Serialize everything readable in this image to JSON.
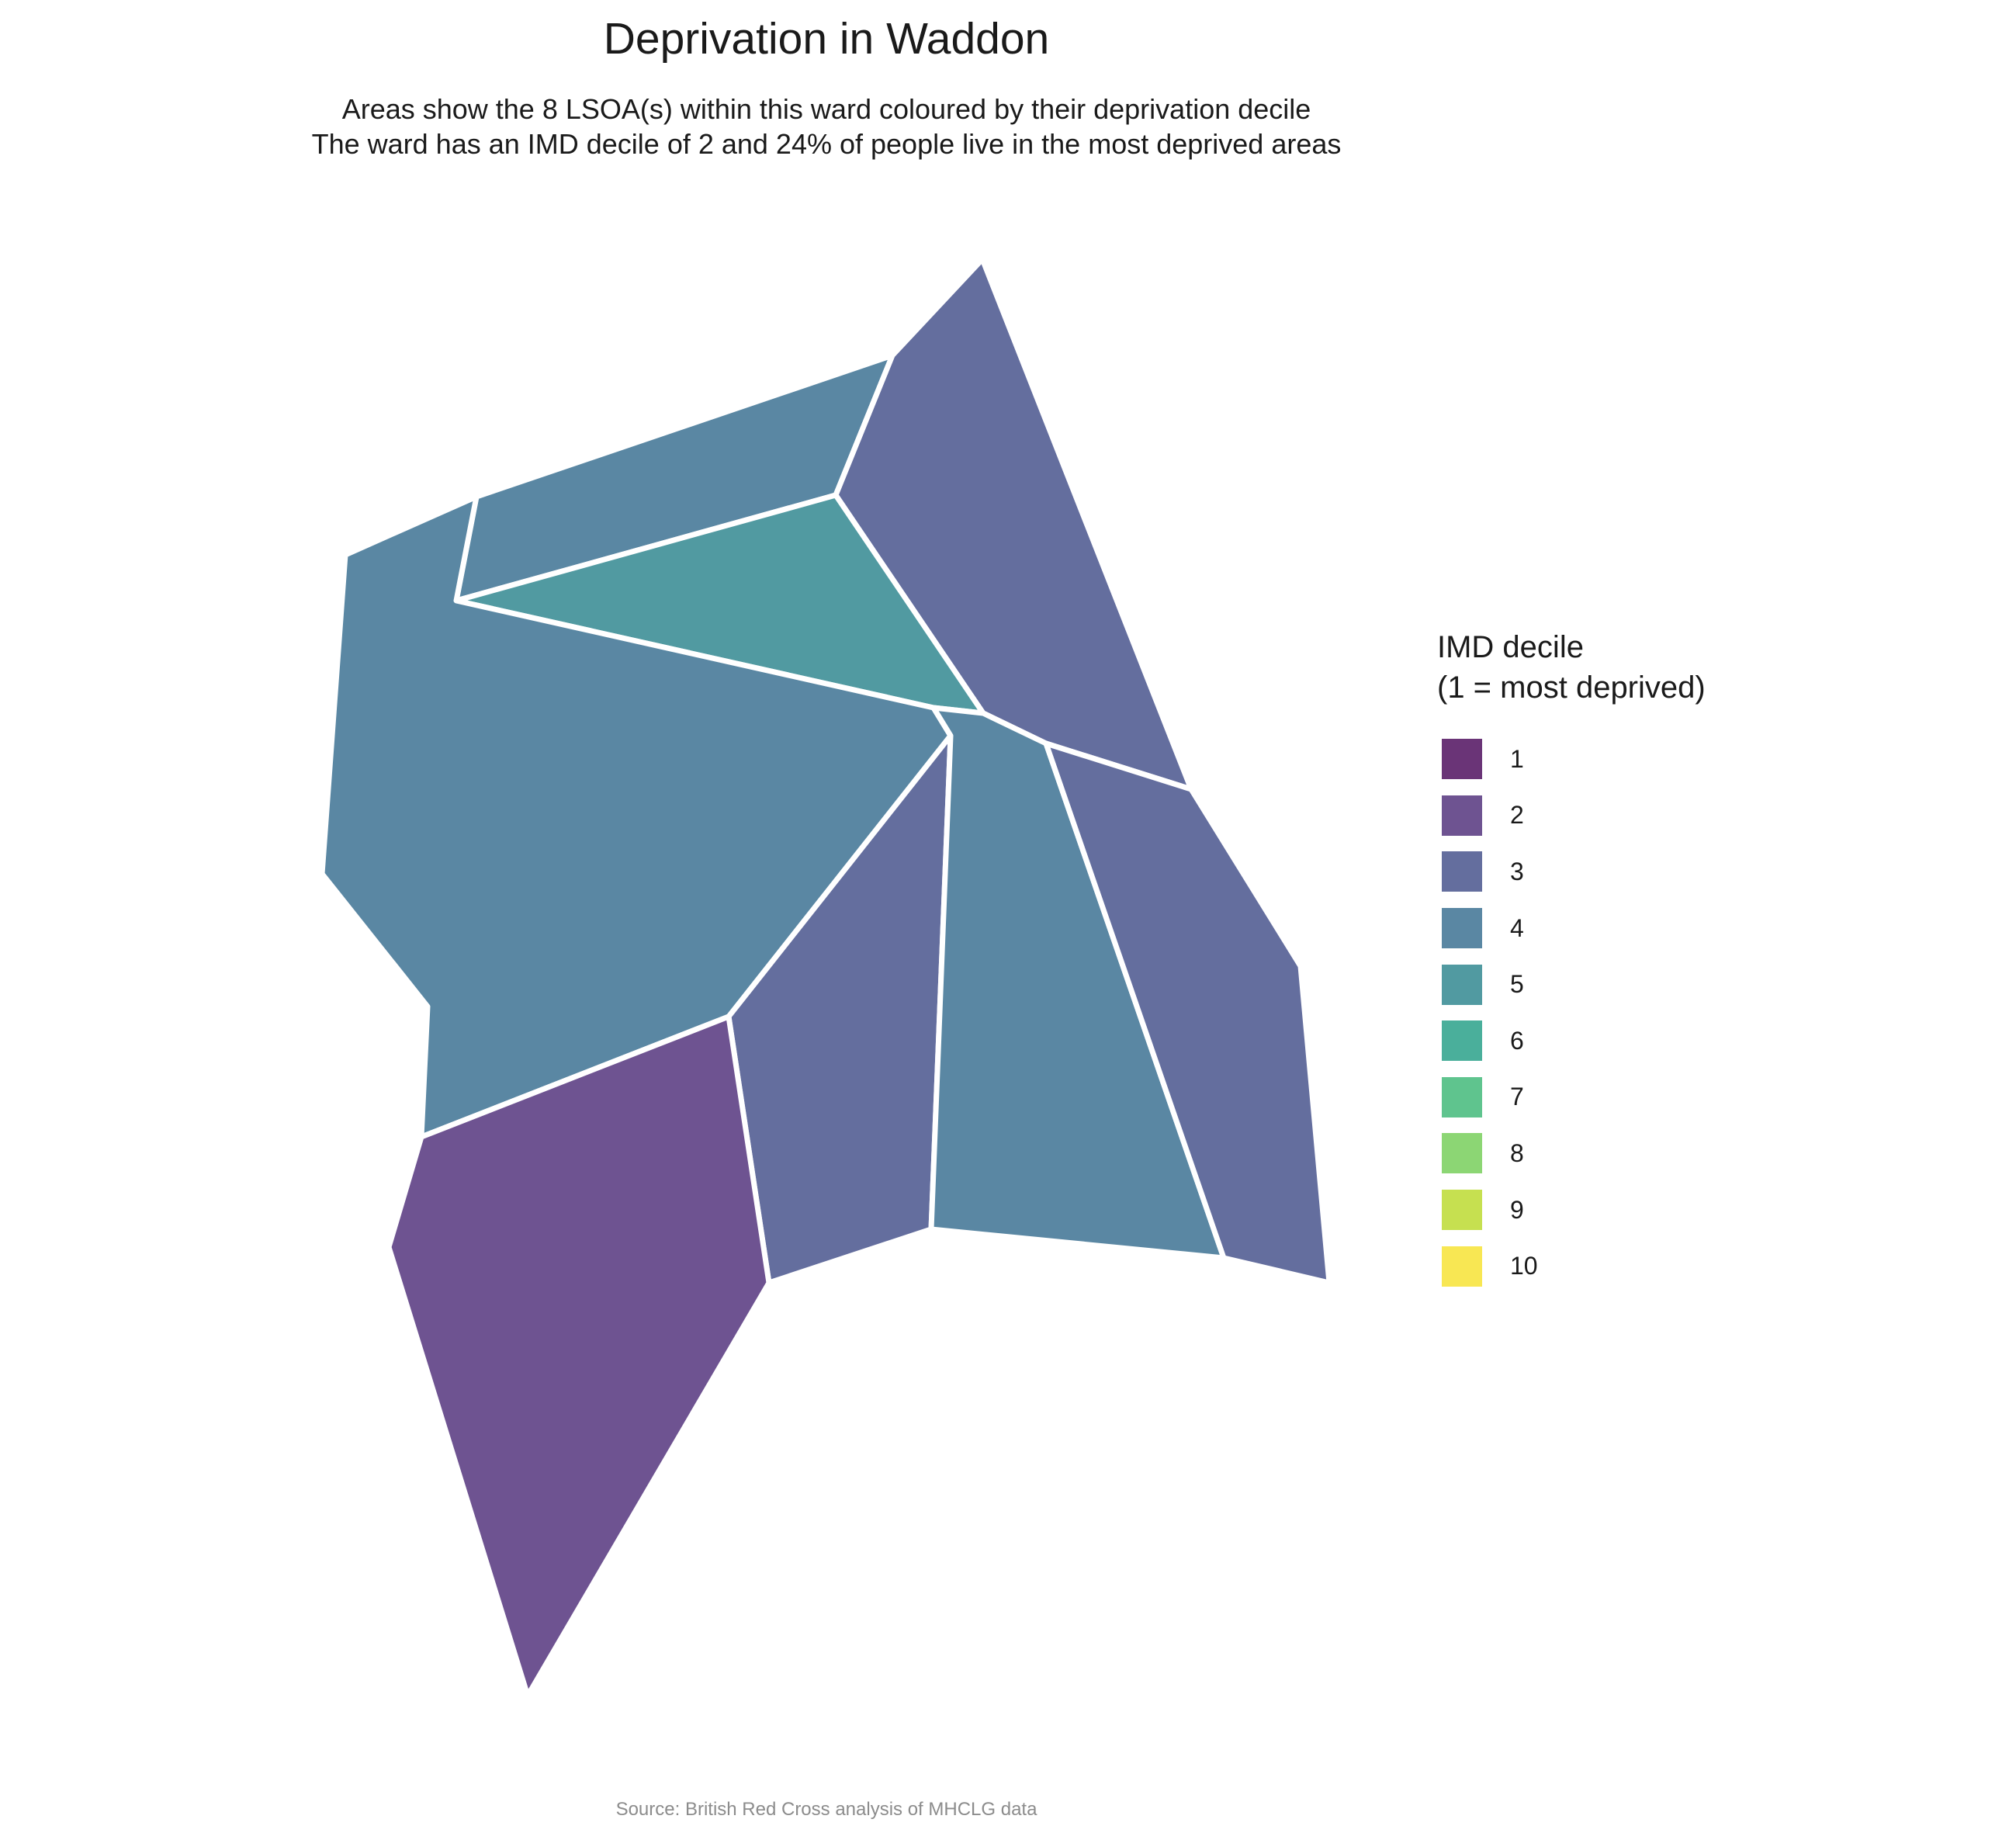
{
  "title": "Deprivation in Waddon",
  "subtitle": {
    "line1": "Areas show the 8 LSOA(s) within this ward coloured by their deprivation decile",
    "line2": "The ward has an IMD decile of 2 and 24% of people live in the most deprived areas"
  },
  "legend": {
    "title_line1": "IMD decile",
    "title_line2": "(1 = most deprived)",
    "items": [
      {
        "label": "1",
        "color": "#6a3477"
      },
      {
        "label": "2",
        "color": "#6e5391"
      },
      {
        "label": "3",
        "color": "#646e9e"
      },
      {
        "label": "4",
        "color": "#5a87a3"
      },
      {
        "label": "5",
        "color": "#519aa1"
      },
      {
        "label": "6",
        "color": "#4aaf9b"
      },
      {
        "label": "7",
        "color": "#5fc48e"
      },
      {
        "label": "8",
        "color": "#8cd674"
      },
      {
        "label": "9",
        "color": "#c6e050"
      },
      {
        "label": "10",
        "color": "#f8e753"
      }
    ]
  },
  "map_data": {
    "ward": "Waddon",
    "lsoa_count": 8,
    "ward_imd_decile": 2,
    "percent_most_deprived": 24,
    "areas": [
      {
        "id": "north-west-strip",
        "decile": 4
      },
      {
        "id": "north-east",
        "decile": 3
      },
      {
        "id": "central-triangle",
        "decile": 5
      },
      {
        "id": "west-large",
        "decile": 4
      },
      {
        "id": "south-central",
        "decile": 3
      },
      {
        "id": "central-south",
        "decile": 4
      },
      {
        "id": "east",
        "decile": 3
      },
      {
        "id": "south-west",
        "decile": 2
      }
    ]
  },
  "caption": "Source: British Red Cross analysis of MHCLG data"
}
